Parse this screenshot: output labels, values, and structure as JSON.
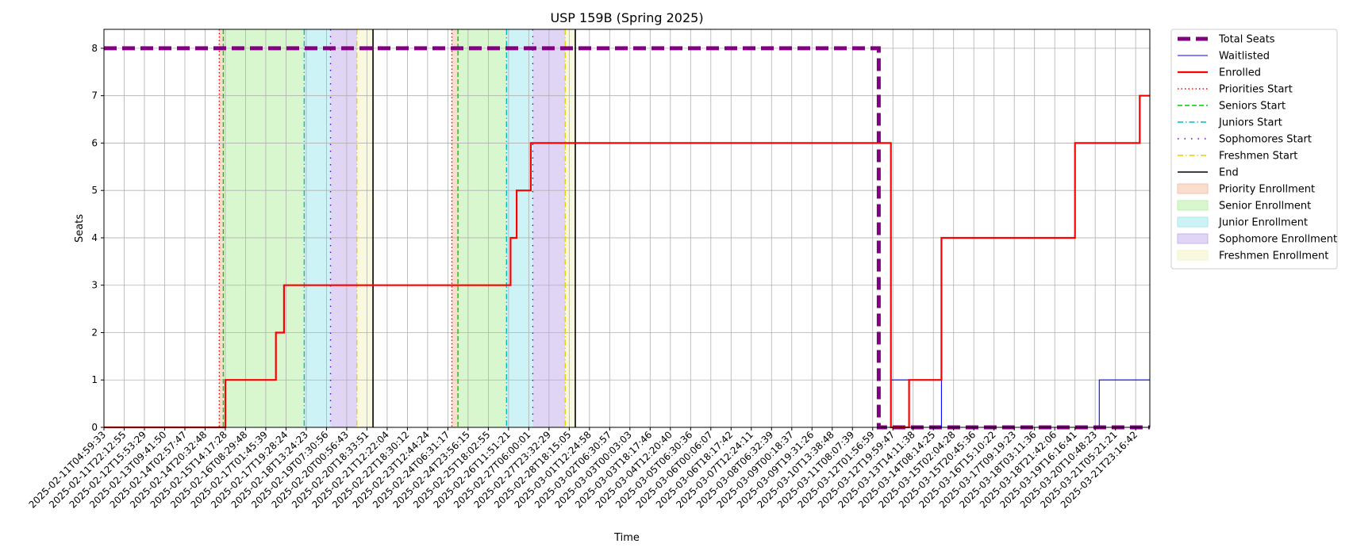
{
  "chart_data": {
    "type": "line",
    "title": "USP 159B (Spring 2025)",
    "xlabel": "Time",
    "ylabel": "Seats",
    "ylim": [
      0,
      8.4
    ],
    "yticks": [
      0,
      1,
      2,
      3,
      4,
      5,
      6,
      7,
      8
    ],
    "grid": true,
    "legend_position": "outside-right-top",
    "x_tick_labels": [
      "2025-02-11T04:59:33",
      "2025-02-11T22:12:55",
      "2025-02-12T15:53:29",
      "2025-02-13T09:41:50",
      "2025-02-14T02:57:47",
      "2025-02-14T20:32:48",
      "2025-02-15T14:17:28",
      "2025-02-16T08:29:48",
      "2025-02-17T01:45:39",
      "2025-02-17T19:28:24",
      "2025-02-18T13:24:23",
      "2025-02-19T07:30:56",
      "2025-02-20T00:56:43",
      "2025-02-20T18:33:51",
      "2025-02-21T12:22:04",
      "2025-02-22T18:30:12",
      "2025-02-23T12:44:24",
      "2025-02-24T06:31:17",
      "2025-02-24T23:56:15",
      "2025-02-25T18:02:55",
      "2025-02-26T11:51:21",
      "2025-02-27T06:00:01",
      "2025-02-27T23:32:29",
      "2025-02-28T18:15:05",
      "2025-03-01T12:24:58",
      "2025-03-02T06:30:57",
      "2025-03-03T00:03:03",
      "2025-03-03T18:17:46",
      "2025-03-04T12:20:40",
      "2025-03-05T06:30:36",
      "2025-03-06T00:06:07",
      "2025-03-06T18:17:42",
      "2025-03-07T12:24:11",
      "2025-03-08T06:32:39",
      "2025-03-09T00:18:37",
      "2025-03-09T19:31:26",
      "2025-03-10T13:38:48",
      "2025-03-11T08:07:39",
      "2025-03-12T01:56:59",
      "2025-03-12T19:59:47",
      "2025-03-13T14:11:38",
      "2025-03-14T08:14:25",
      "2025-03-15T02:04:28",
      "2025-03-15T20:45:36",
      "2025-03-16T15:10:22",
      "2025-03-17T09:19:23",
      "2025-03-18T03:11:36",
      "2025-03-18T21:42:06",
      "2025-03-19T16:16:41",
      "2025-03-20T10:48:23",
      "2025-03-21T05:21:21",
      "2025-03-21T23:16:42"
    ],
    "x_range": [
      0,
      51.7
    ],
    "series": [
      {
        "name": "Total Seats",
        "color": "#800080",
        "style": "dashed-thick",
        "points": [
          [
            0,
            8
          ],
          [
            38.3,
            8
          ],
          [
            38.3,
            0
          ],
          [
            51.7,
            0
          ]
        ]
      },
      {
        "name": "Waitlisted",
        "color": "#0000ff",
        "style": "solid-thin",
        "points": [
          [
            0,
            0
          ],
          [
            38.9,
            0
          ],
          [
            38.9,
            1
          ],
          [
            41.4,
            1
          ],
          [
            41.4,
            0
          ],
          [
            49.2,
            0
          ],
          [
            49.2,
            1
          ],
          [
            51.7,
            1
          ]
        ]
      },
      {
        "name": "Enrolled",
        "color": "#ff0000",
        "style": "solid-thick",
        "points": [
          [
            0,
            0
          ],
          [
            6.0,
            0
          ],
          [
            6.0,
            1
          ],
          [
            8.5,
            1
          ],
          [
            8.5,
            2
          ],
          [
            8.9,
            2
          ],
          [
            8.9,
            3
          ],
          [
            20.1,
            3
          ],
          [
            20.1,
            4
          ],
          [
            20.4,
            4
          ],
          [
            20.4,
            5
          ],
          [
            21.1,
            5
          ],
          [
            21.1,
            6
          ],
          [
            38.9,
            6
          ],
          [
            38.9,
            0
          ],
          [
            39.8,
            0
          ],
          [
            39.8,
            1
          ],
          [
            41.4,
            1
          ],
          [
            41.4,
            4
          ],
          [
            48.0,
            4
          ],
          [
            48.0,
            6
          ],
          [
            51.2,
            6
          ],
          [
            51.2,
            7
          ],
          [
            51.7,
            7
          ]
        ]
      }
    ],
    "vertical_markers": [
      {
        "name": "Priorities Start",
        "color": "#ff0000",
        "style": "dotted",
        "x": [
          5.7,
          17.2
        ]
      },
      {
        "name": "Seniors Start",
        "color": "#00cc00",
        "style": "dashed",
        "x": [
          5.9,
          17.5
        ]
      },
      {
        "name": "Juniors Start",
        "color": "#00bfbf",
        "style": "dashdot",
        "x": [
          9.9,
          19.9
        ]
      },
      {
        "name": "Sophomores Start",
        "color": "#6600cc",
        "style": "loosedot",
        "x": [
          11.2,
          21.2
        ]
      },
      {
        "name": "Freshmen Start",
        "color": "#e6d000",
        "style": "dashdot",
        "x": [
          12.5,
          22.8
        ]
      },
      {
        "name": "End",
        "color": "#000000",
        "style": "solid",
        "x": [
          13.3,
          23.3
        ]
      }
    ],
    "shaded_regions": [
      {
        "name": "Priority Enrollment",
        "color": "#f4c2a8",
        "spans": [
          [
            5.7,
            5.9
          ],
          [
            17.2,
            17.5
          ]
        ]
      },
      {
        "name": "Senior Enrollment",
        "color": "#b9f0a8",
        "spans": [
          [
            5.9,
            9.9
          ],
          [
            17.5,
            19.9
          ]
        ]
      },
      {
        "name": "Junior Enrollment",
        "color": "#a6e9ee",
        "spans": [
          [
            9.9,
            11.2
          ],
          [
            19.9,
            21.2
          ]
        ]
      },
      {
        "name": "Sophomore Enrollment",
        "color": "#c9b2ee",
        "spans": [
          [
            11.2,
            12.5
          ],
          [
            21.2,
            22.8
          ]
        ]
      },
      {
        "name": "Freshmen Enrollment",
        "color": "#f4f4c4",
        "spans": [
          [
            12.5,
            13.3
          ],
          [
            22.8,
            23.3
          ]
        ]
      }
    ]
  }
}
